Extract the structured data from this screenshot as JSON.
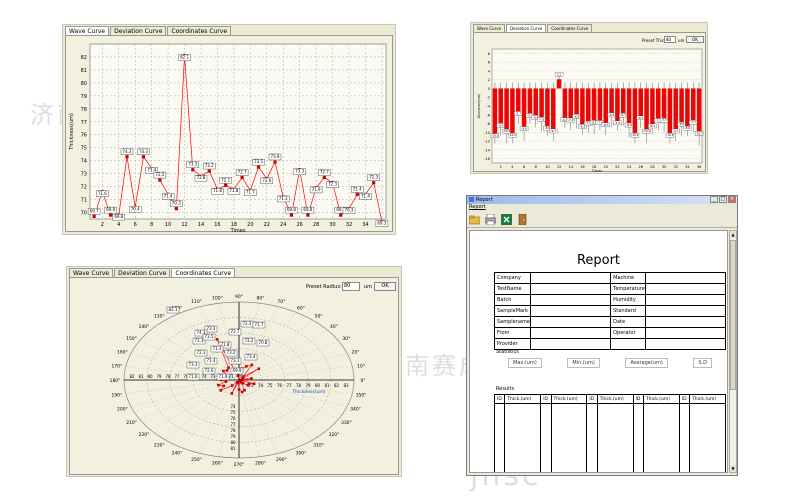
{
  "tabs": [
    "Wave Curve",
    "Deviation Curve",
    "Coordinates Curve"
  ],
  "wave": {
    "active_tab": 0,
    "ylabel": "Thickness(um)",
    "xlabel": "Times",
    "yticks": [
      "70",
      "71",
      "72",
      "73",
      "74",
      "75",
      "76",
      "77",
      "78",
      "79",
      "80",
      "81",
      "82"
    ],
    "xticks": [
      "2",
      "4",
      "6",
      "8",
      "10",
      "12",
      "14",
      "16",
      "18",
      "20",
      "22",
      "24",
      "26",
      "28",
      "30",
      "32",
      "34",
      "36"
    ]
  },
  "deviation": {
    "active_tab": 1,
    "preset_label": "Preset Thick:",
    "preset_value": "80",
    "unit": "um",
    "ok_label": "OK",
    "ylabel": "Deviation(um)",
    "xlabel": "Times",
    "yticks": [
      "8",
      "6",
      "4",
      "2",
      "0",
      "-2",
      "-4",
      "-6",
      "-8",
      "-10",
      "-12",
      "-14",
      "-16"
    ],
    "xticks": [
      "2",
      "4",
      "6",
      "8",
      "10",
      "12",
      "14",
      "16",
      "18",
      "20",
      "22",
      "24",
      "26",
      "28",
      "30",
      "32",
      "34",
      "36"
    ]
  },
  "polar": {
    "active_tab": 2,
    "preset_label": "Preset Radius:",
    "preset_value": "80",
    "unit": "um",
    "ok_label": "OK",
    "axis_label": "Thickness(um)",
    "angle_labels": [
      "0",
      "10",
      "20",
      "30",
      "40",
      "50",
      "60",
      "70",
      "80",
      "90",
      "100",
      "110",
      "120",
      "130",
      "140",
      "150",
      "160",
      "170",
      "180",
      "190",
      "200",
      "210",
      "220",
      "230",
      "240",
      "250",
      "260",
      "270",
      "280",
      "290",
      "300",
      "310",
      "320",
      "330",
      "340",
      "350"
    ],
    "radial_ticks_left": [
      "82",
      "81",
      "80",
      "79",
      "78",
      "77",
      "76",
      "75",
      "74",
      "73",
      "72",
      "71",
      "70"
    ],
    "radial_ticks_right": [
      "73",
      "74",
      "75",
      "76",
      "77",
      "78",
      "79",
      "80",
      "81",
      "82",
      "83"
    ],
    "radial_ticks_down": [
      "74",
      "75",
      "76",
      "77",
      "78",
      "79",
      "80",
      "81"
    ],
    "point_labels": [
      "82.1",
      "73.3",
      "72.7",
      "72.3",
      "71.7",
      "72.3",
      "74.3",
      "73.5",
      "72.3",
      "71.4",
      "71.8",
      "73.2",
      "73.1",
      "72.2",
      "70.8",
      "73.4",
      "73.3",
      "72.6",
      "71.6",
      "71.3",
      "69.9",
      "71.9"
    ]
  },
  "report": {
    "window_title": "Report",
    "menu": "Report",
    "heading": "Report",
    "info_rows": [
      [
        "Company",
        "",
        "Machine",
        ""
      ],
      [
        "TestName",
        "",
        "Temperature",
        ""
      ],
      [
        "Batch",
        "",
        "Humidity",
        ""
      ],
      [
        "SampleMark",
        "",
        "Standard",
        ""
      ],
      [
        "Samplename",
        "",
        "Date",
        ""
      ],
      [
        "From",
        "",
        "Operator",
        ""
      ],
      [
        "Provider",
        "",
        "",
        ""
      ]
    ],
    "statistics_label": "Statistics",
    "stat_labels": [
      "Max.(um)",
      "Min.(um)",
      "Average(um)",
      "S.D"
    ],
    "results_label": "Results",
    "result_headers": [
      "ID",
      "Thick.(um)",
      "ID",
      "Thick.(um)",
      "ID",
      "Thick.(um)",
      "ID",
      "Thick.(um)",
      "ID",
      "Thick.(um)"
    ]
  },
  "chart_data": [
    {
      "type": "line",
      "ylabel": "Thickness(um)",
      "xlabel": "Times",
      "ylim": [
        69.5,
        83
      ],
      "x": [
        1,
        2,
        3,
        4,
        5,
        6,
        7,
        8,
        9,
        10,
        11,
        12,
        13,
        14,
        15,
        16,
        17,
        18,
        19,
        20,
        21,
        22,
        23,
        24,
        25,
        26,
        27,
        28,
        29,
        30,
        31,
        32,
        33,
        34,
        35,
        36
      ],
      "values": [
        69.7,
        71.6,
        69.8,
        69.8,
        74.3,
        70.4,
        74.3,
        73.4,
        72.5,
        71.4,
        70.3,
        82.1,
        73.3,
        72.8,
        73.2,
        71.8,
        72.1,
        71.8,
        72.7,
        71.7,
        73.5,
        72.6,
        73.9,
        71.2,
        69.8,
        73.3,
        69.8,
        71.9,
        72.7,
        72.3,
        69.8,
        70.3,
        71.4,
        71.4,
        72.3,
        69.3
      ],
      "color": "#ff0000"
    },
    {
      "type": "bar",
      "ylabel": "Deviation(um)",
      "xlabel": "Times",
      "ylim": [
        -17,
        9
      ],
      "x": [
        1,
        2,
        3,
        4,
        5,
        6,
        7,
        8,
        9,
        10,
        11,
        12,
        13,
        14,
        15,
        16,
        17,
        18,
        19,
        20,
        21,
        22,
        23,
        24,
        25,
        26,
        27,
        28,
        29,
        30,
        31,
        32,
        33,
        34,
        35,
        36
      ],
      "values": [
        -10.3,
        -8.4,
        -10.2,
        -10.2,
        -5.7,
        -9.6,
        -5.7,
        -6.6,
        -7.5,
        -8.6,
        -9.7,
        2.1,
        -6.7,
        -7.2,
        -6.8,
        -8.2,
        -7.9,
        -8.2,
        -7.3,
        -8.3,
        -6.5,
        -7.4,
        -6.1,
        -8.8,
        -10.2,
        -6.7,
        -10.2,
        -8.1,
        -7.3,
        -7.7,
        -10.2,
        -9.7,
        -8.6,
        -8.6,
        -7.7,
        -10.7
      ],
      "color": "#ff0000"
    }
  ]
}
